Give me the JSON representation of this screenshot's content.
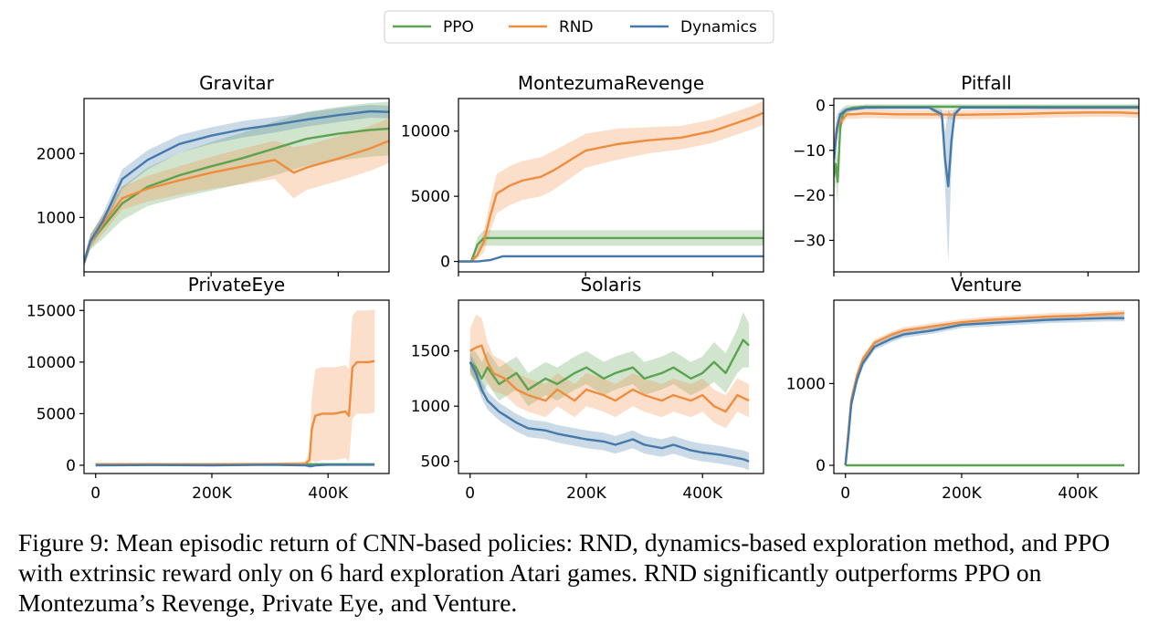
{
  "legend": {
    "entries": [
      {
        "name": "PPO",
        "color": "#5ba350"
      },
      {
        "name": "RND",
        "color": "#ef8d3f"
      },
      {
        "name": "Dynamics",
        "color": "#4479aa"
      }
    ]
  },
  "chart_data": [
    {
      "type": "line",
      "title": "Gravitar",
      "xlim": [
        0,
        480000
      ],
      "ylim": [
        150,
        2860
      ],
      "yticks": [
        1000,
        2000
      ],
      "ytick_labels": [
        "1000",
        "2000"
      ],
      "xticks": [
        0,
        200000,
        400000
      ],
      "xtick_labels": [],
      "series": [
        {
          "name": "PPO",
          "x": [
            0,
            10000,
            30000,
            60000,
            100000,
            150000,
            200000,
            250000,
            300000,
            350000,
            400000,
            450000,
            480000
          ],
          "y": [
            300,
            620,
            850,
            1220,
            1480,
            1660,
            1800,
            1930,
            2080,
            2230,
            2310,
            2370,
            2390
          ],
          "band": [
            80,
            120,
            180,
            260,
            300,
            350,
            380,
            400,
            420,
            420,
            420,
            420,
            420
          ]
        },
        {
          "name": "RND",
          "x": [
            0,
            10000,
            30000,
            60000,
            100000,
            150000,
            200000,
            250000,
            300000,
            330000,
            350000,
            400000,
            450000,
            480000
          ],
          "y": [
            300,
            620,
            900,
            1300,
            1450,
            1580,
            1700,
            1800,
            1900,
            1700,
            1780,
            1920,
            2080,
            2200
          ],
          "band": [
            80,
            120,
            150,
            180,
            200,
            220,
            250,
            280,
            300,
            400,
            350,
            350,
            350,
            350
          ]
        },
        {
          "name": "Dynamics",
          "x": [
            0,
            10000,
            30000,
            60000,
            100000,
            150000,
            200000,
            250000,
            300000,
            350000,
            400000,
            450000,
            480000
          ],
          "y": [
            300,
            630,
            950,
            1600,
            1900,
            2150,
            2280,
            2380,
            2450,
            2530,
            2600,
            2660,
            2650
          ],
          "band": [
            60,
            90,
            120,
            150,
            150,
            140,
            130,
            130,
            120,
            110,
            110,
            100,
            100
          ]
        }
      ]
    },
    {
      "type": "line",
      "title": "MontezumaRevenge",
      "xlim": [
        0,
        480000
      ],
      "ylim": [
        -800,
        12500
      ],
      "yticks": [
        0,
        5000,
        10000
      ],
      "ytick_labels": [
        "0",
        "5000",
        "10000"
      ],
      "xticks": [
        0,
        200000,
        400000
      ],
      "xtick_labels": [],
      "series": [
        {
          "name": "PPO",
          "x": [
            0,
            20000,
            30000,
            40000,
            60000,
            100000,
            200000,
            300000,
            400000,
            480000
          ],
          "y": [
            0,
            0,
            1300,
            1800,
            1800,
            1800,
            1800,
            1800,
            1800,
            1800
          ],
          "band": [
            0,
            0,
            600,
            600,
            600,
            600,
            600,
            600,
            600,
            600
          ]
        },
        {
          "name": "RND",
          "x": [
            0,
            20000,
            30000,
            40000,
            50000,
            60000,
            80000,
            100000,
            130000,
            150000,
            200000,
            250000,
            300000,
            350000,
            400000,
            430000,
            460000,
            480000
          ],
          "y": [
            0,
            0,
            500,
            1500,
            3500,
            5200,
            5800,
            6200,
            6500,
            7000,
            8500,
            9000,
            9300,
            9500,
            10000,
            10500,
            11000,
            11400
          ],
          "band": [
            0,
            0,
            300,
            800,
            1200,
            1500,
            1500,
            1500,
            1500,
            1500,
            1300,
            1200,
            1000,
            900,
            900,
            900,
            900,
            900
          ]
        },
        {
          "name": "Dynamics",
          "x": [
            0,
            30000,
            50000,
            70000,
            100000,
            200000,
            300000,
            400000,
            480000
          ],
          "y": [
            0,
            0,
            100,
            400,
            400,
            400,
            400,
            400,
            400
          ],
          "band": [
            0,
            0,
            50,
            80,
            80,
            80,
            80,
            80,
            80
          ]
        }
      ]
    },
    {
      "type": "line",
      "title": "Pitfall",
      "xlim": [
        0,
        480000
      ],
      "ylim": [
        -37,
        1.5
      ],
      "yticks": [
        -30,
        -20,
        -10,
        0
      ],
      "ytick_labels": [
        "−30",
        "−20",
        "−10",
        "0"
      ],
      "xticks": [
        0,
        200000,
        400000
      ],
      "xtick_labels": [],
      "series": [
        {
          "name": "PPO",
          "x": [
            0,
            3000,
            6000,
            10000,
            14000,
            20000,
            30000,
            50000,
            100000,
            200000,
            300000,
            400000,
            480000
          ],
          "y": [
            -16,
            -13,
            -17,
            -5,
            -2,
            -1,
            -0.5,
            -0.3,
            -0.3,
            -0.3,
            -0.3,
            -0.3,
            -0.3
          ],
          "band": [
            5,
            4,
            5,
            3,
            1.5,
            1,
            0.5,
            0.5,
            0.5,
            0.5,
            0.5,
            0.5,
            0.5
          ]
        },
        {
          "name": "RND",
          "x": [
            0,
            4000,
            8000,
            15000,
            20000,
            30000,
            50000,
            100000,
            150000,
            200000,
            250000,
            300000,
            350000,
            400000,
            450000,
            480000
          ],
          "y": [
            -10,
            -6,
            -4,
            -3,
            -2,
            -2,
            -1.8,
            -2,
            -2,
            -2.1,
            -2,
            -1.9,
            -1.7,
            -1.6,
            -1.6,
            -1.8
          ],
          "band": [
            3,
            2,
            1.5,
            1,
            1,
            1,
            1,
            1,
            1,
            1,
            1,
            1,
            1,
            1,
            1,
            1
          ]
        },
        {
          "name": "Dynamics",
          "x": [
            0,
            5000,
            10000,
            20000,
            50000,
            100000,
            150000,
            170000,
            175000,
            180000,
            185000,
            190000,
            200000,
            250000,
            300000,
            350000,
            400000,
            450000,
            480000
          ],
          "y": [
            -12,
            -5,
            -2,
            -1,
            -0.5,
            -0.5,
            -0.5,
            -2,
            -12,
            -18,
            -8,
            -2,
            -0.5,
            -0.5,
            -0.5,
            -0.5,
            -0.5,
            -0.5,
            -0.5
          ],
          "band": [
            4,
            3,
            1,
            0.5,
            0.3,
            0.3,
            0.3,
            1,
            6,
            17,
            6,
            1,
            0.3,
            0.3,
            0.3,
            0.3,
            0.3,
            0.3,
            0.3
          ]
        }
      ]
    },
    {
      "type": "line",
      "title": "PrivateEye",
      "xlim": [
        -20000,
        505000
      ],
      "ylim": [
        -800,
        16000
      ],
      "yticks": [
        0,
        5000,
        10000,
        15000
      ],
      "ytick_labels": [
        "0",
        "5000",
        "10000",
        "15000"
      ],
      "xticks": [
        0,
        200000,
        400000
      ],
      "xtick_labels": [
        "0",
        "200K",
        "400K"
      ],
      "series": [
        {
          "name": "PPO",
          "x": [
            0,
            100000,
            200000,
            300000,
            400000,
            480000
          ],
          "y": [
            100,
            100,
            100,
            100,
            100,
            100
          ],
          "band": [
            50,
            50,
            50,
            50,
            50,
            50
          ]
        },
        {
          "name": "RND",
          "x": [
            0,
            100000,
            200000,
            300000,
            360000,
            368000,
            372000,
            378000,
            390000,
            410000,
            430000,
            436000,
            442000,
            450000,
            470000,
            480000
          ],
          "y": [
            80,
            100,
            100,
            120,
            150,
            500,
            3500,
            4800,
            5000,
            5000,
            5200,
            4800,
            9500,
            10000,
            10000,
            10100
          ],
          "band": [
            80,
            80,
            80,
            100,
            200,
            800,
            3000,
            4500,
            4500,
            4500,
            4500,
            4500,
            5000,
            5000,
            5000,
            5000
          ]
        },
        {
          "name": "Dynamics",
          "x": [
            0,
            100000,
            200000,
            300000,
            360000,
            370000,
            380000,
            400000,
            480000
          ],
          "y": [
            0,
            20,
            0,
            50,
            0,
            -100,
            0,
            50,
            50
          ],
          "band": [
            80,
            80,
            80,
            80,
            80,
            100,
            80,
            80,
            80
          ]
        }
      ]
    },
    {
      "type": "line",
      "title": "Solaris",
      "xlim": [
        -20000,
        505000
      ],
      "ylim": [
        390,
        1960
      ],
      "yticks": [
        500,
        1000,
        1500
      ],
      "ytick_labels": [
        "500",
        "1000",
        "1500"
      ],
      "xticks": [
        0,
        200000,
        400000
      ],
      "xtick_labels": [
        "0",
        "200K",
        "400K"
      ],
      "series": [
        {
          "name": "PPO",
          "x": [
            0,
            10000,
            20000,
            30000,
            50000,
            80000,
            100000,
            130000,
            150000,
            180000,
            200000,
            230000,
            250000,
            280000,
            300000,
            330000,
            350000,
            380000,
            400000,
            420000,
            440000,
            460000,
            470000,
            480000
          ],
          "y": [
            1400,
            1350,
            1250,
            1350,
            1200,
            1300,
            1150,
            1250,
            1200,
            1300,
            1350,
            1250,
            1300,
            1350,
            1250,
            1300,
            1350,
            1250,
            1300,
            1400,
            1300,
            1500,
            1600,
            1550
          ],
          "band": [
            120,
            140,
            150,
            150,
            150,
            150,
            150,
            150,
            150,
            150,
            150,
            150,
            150,
            150,
            150,
            150,
            150,
            150,
            150,
            180,
            180,
            200,
            250,
            200
          ]
        },
        {
          "name": "RND",
          "x": [
            0,
            10000,
            20000,
            30000,
            40000,
            60000,
            80000,
            100000,
            130000,
            150000,
            180000,
            200000,
            230000,
            250000,
            280000,
            300000,
            330000,
            350000,
            380000,
            400000,
            420000,
            440000,
            460000,
            480000
          ],
          "y": [
            1500,
            1530,
            1550,
            1400,
            1300,
            1250,
            1150,
            1100,
            1050,
            1150,
            1050,
            1150,
            1100,
            1050,
            1150,
            1100,
            1050,
            1100,
            1050,
            1100,
            1000,
            950,
            1100,
            1050
          ],
          "band": [
            200,
            300,
            250,
            180,
            160,
            150,
            150,
            150,
            150,
            150,
            150,
            150,
            150,
            150,
            150,
            150,
            150,
            150,
            150,
            150,
            150,
            150,
            150,
            150
          ]
        },
        {
          "name": "Dynamics",
          "x": [
            0,
            5000,
            10000,
            20000,
            30000,
            50000,
            80000,
            100000,
            130000,
            150000,
            180000,
            200000,
            230000,
            250000,
            280000,
            300000,
            330000,
            350000,
            380000,
            400000,
            430000,
            450000,
            470000,
            480000
          ],
          "y": [
            1400,
            1350,
            1300,
            1150,
            1050,
            950,
            850,
            800,
            780,
            750,
            720,
            700,
            680,
            650,
            700,
            650,
            620,
            650,
            600,
            580,
            560,
            540,
            520,
            500
          ],
          "band": [
            80,
            80,
            80,
            80,
            80,
            80,
            80,
            80,
            80,
            80,
            80,
            80,
            80,
            80,
            80,
            80,
            80,
            80,
            80,
            80,
            80,
            80,
            80,
            80
          ]
        }
      ]
    },
    {
      "type": "line",
      "title": "Venture",
      "xlim": [
        -20000,
        505000
      ],
      "ylim": [
        -100,
        2020
      ],
      "yticks": [
        0,
        1000
      ],
      "ytick_labels": [
        "0",
        "1000"
      ],
      "xticks": [
        0,
        200000,
        400000
      ],
      "xtick_labels": [
        "0",
        "200K",
        "400K"
      ],
      "series": [
        {
          "name": "PPO",
          "x": [
            0,
            100000,
            200000,
            300000,
            400000,
            480000
          ],
          "y": [
            0,
            0,
            0,
            0,
            0,
            0
          ],
          "band": [
            5,
            5,
            5,
            5,
            5,
            5
          ]
        },
        {
          "name": "RND",
          "x": [
            0,
            5000,
            10000,
            20000,
            30000,
            50000,
            80000,
            100000,
            150000,
            200000,
            250000,
            300000,
            350000,
            400000,
            450000,
            480000
          ],
          "y": [
            0,
            400,
            800,
            1100,
            1300,
            1500,
            1600,
            1650,
            1700,
            1750,
            1780,
            1800,
            1820,
            1830,
            1850,
            1860
          ],
          "band": [
            0,
            80,
            80,
            60,
            50,
            40,
            40,
            40,
            40,
            40,
            40,
            40,
            40,
            40,
            40,
            40
          ]
        },
        {
          "name": "Dynamics",
          "x": [
            0,
            5000,
            10000,
            20000,
            30000,
            50000,
            80000,
            100000,
            150000,
            200000,
            250000,
            300000,
            350000,
            400000,
            450000,
            480000
          ],
          "y": [
            0,
            350,
            750,
            1050,
            1250,
            1450,
            1550,
            1600,
            1650,
            1720,
            1740,
            1760,
            1780,
            1790,
            1800,
            1800
          ],
          "band": [
            0,
            80,
            80,
            60,
            50,
            40,
            40,
            40,
            40,
            40,
            40,
            40,
            40,
            40,
            40,
            40
          ]
        }
      ]
    }
  ],
  "caption": "Figure 9: Mean episodic return of CNN-based policies: RND, dynamics-based exploration method, and PPO with extrinsic reward only on 6 hard exploration Atari games. RND significantly outperforms PPO on Montezuma’s Revenge, Private Eye, and Venture."
}
